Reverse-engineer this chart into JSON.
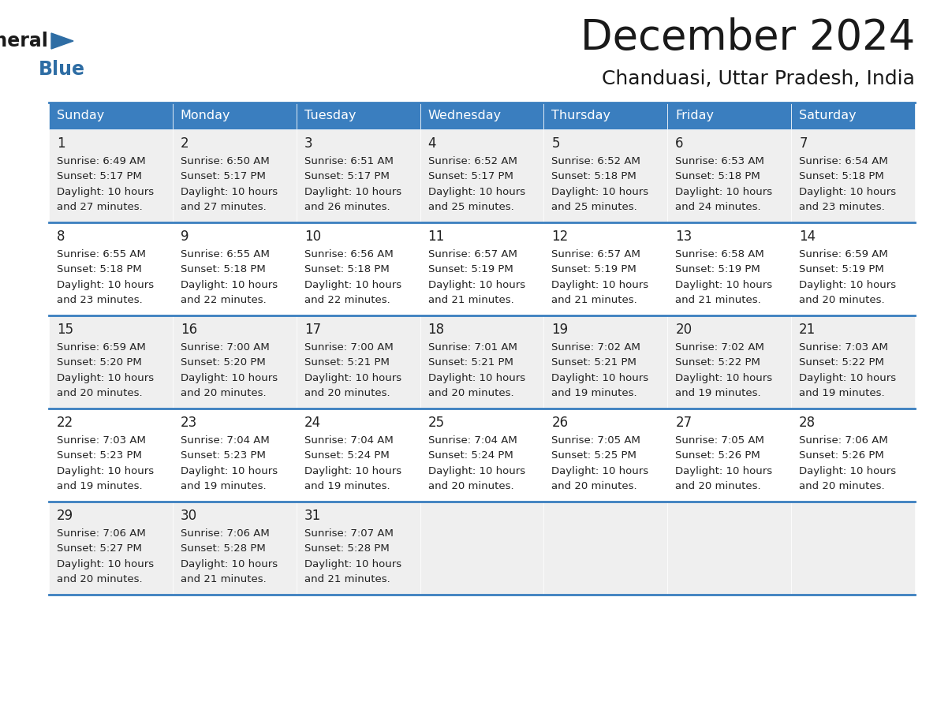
{
  "title": "December 2024",
  "subtitle": "Chanduasi, Uttar Pradesh, India",
  "header_color": "#3a7ebf",
  "header_text_color": "#ffffff",
  "row_bg_even": "#efefef",
  "row_bg_odd": "#ffffff",
  "border_color": "#3a7ebf",
  "text_color": "#222222",
  "days_of_week": [
    "Sunday",
    "Monday",
    "Tuesday",
    "Wednesday",
    "Thursday",
    "Friday",
    "Saturday"
  ],
  "weeks": [
    [
      {
        "day": 1,
        "sunrise": "6:49 AM",
        "sunset": "5:17 PM",
        "daylight": "10 hours",
        "daylight2": "and 27 minutes."
      },
      {
        "day": 2,
        "sunrise": "6:50 AM",
        "sunset": "5:17 PM",
        "daylight": "10 hours",
        "daylight2": "and 27 minutes."
      },
      {
        "day": 3,
        "sunrise": "6:51 AM",
        "sunset": "5:17 PM",
        "daylight": "10 hours",
        "daylight2": "and 26 minutes."
      },
      {
        "day": 4,
        "sunrise": "6:52 AM",
        "sunset": "5:17 PM",
        "daylight": "10 hours",
        "daylight2": "and 25 minutes."
      },
      {
        "day": 5,
        "sunrise": "6:52 AM",
        "sunset": "5:18 PM",
        "daylight": "10 hours",
        "daylight2": "and 25 minutes."
      },
      {
        "day": 6,
        "sunrise": "6:53 AM",
        "sunset": "5:18 PM",
        "daylight": "10 hours",
        "daylight2": "and 24 minutes."
      },
      {
        "day": 7,
        "sunrise": "6:54 AM",
        "sunset": "5:18 PM",
        "daylight": "10 hours",
        "daylight2": "and 23 minutes."
      }
    ],
    [
      {
        "day": 8,
        "sunrise": "6:55 AM",
        "sunset": "5:18 PM",
        "daylight": "10 hours",
        "daylight2": "and 23 minutes."
      },
      {
        "day": 9,
        "sunrise": "6:55 AM",
        "sunset": "5:18 PM",
        "daylight": "10 hours",
        "daylight2": "and 22 minutes."
      },
      {
        "day": 10,
        "sunrise": "6:56 AM",
        "sunset": "5:18 PM",
        "daylight": "10 hours",
        "daylight2": "and 22 minutes."
      },
      {
        "day": 11,
        "sunrise": "6:57 AM",
        "sunset": "5:19 PM",
        "daylight": "10 hours",
        "daylight2": "and 21 minutes."
      },
      {
        "day": 12,
        "sunrise": "6:57 AM",
        "sunset": "5:19 PM",
        "daylight": "10 hours",
        "daylight2": "and 21 minutes."
      },
      {
        "day": 13,
        "sunrise": "6:58 AM",
        "sunset": "5:19 PM",
        "daylight": "10 hours",
        "daylight2": "and 21 minutes."
      },
      {
        "day": 14,
        "sunrise": "6:59 AM",
        "sunset": "5:19 PM",
        "daylight": "10 hours",
        "daylight2": "and 20 minutes."
      }
    ],
    [
      {
        "day": 15,
        "sunrise": "6:59 AM",
        "sunset": "5:20 PM",
        "daylight": "10 hours",
        "daylight2": "and 20 minutes."
      },
      {
        "day": 16,
        "sunrise": "7:00 AM",
        "sunset": "5:20 PM",
        "daylight": "10 hours",
        "daylight2": "and 20 minutes."
      },
      {
        "day": 17,
        "sunrise": "7:00 AM",
        "sunset": "5:21 PM",
        "daylight": "10 hours",
        "daylight2": "and 20 minutes."
      },
      {
        "day": 18,
        "sunrise": "7:01 AM",
        "sunset": "5:21 PM",
        "daylight": "10 hours",
        "daylight2": "and 20 minutes."
      },
      {
        "day": 19,
        "sunrise": "7:02 AM",
        "sunset": "5:21 PM",
        "daylight": "10 hours",
        "daylight2": "and 19 minutes."
      },
      {
        "day": 20,
        "sunrise": "7:02 AM",
        "sunset": "5:22 PM",
        "daylight": "10 hours",
        "daylight2": "and 19 minutes."
      },
      {
        "day": 21,
        "sunrise": "7:03 AM",
        "sunset": "5:22 PM",
        "daylight": "10 hours",
        "daylight2": "and 19 minutes."
      }
    ],
    [
      {
        "day": 22,
        "sunrise": "7:03 AM",
        "sunset": "5:23 PM",
        "daylight": "10 hours",
        "daylight2": "and 19 minutes."
      },
      {
        "day": 23,
        "sunrise": "7:04 AM",
        "sunset": "5:23 PM",
        "daylight": "10 hours",
        "daylight2": "and 19 minutes."
      },
      {
        "day": 24,
        "sunrise": "7:04 AM",
        "sunset": "5:24 PM",
        "daylight": "10 hours",
        "daylight2": "and 19 minutes."
      },
      {
        "day": 25,
        "sunrise": "7:04 AM",
        "sunset": "5:24 PM",
        "daylight": "10 hours",
        "daylight2": "and 20 minutes."
      },
      {
        "day": 26,
        "sunrise": "7:05 AM",
        "sunset": "5:25 PM",
        "daylight": "10 hours",
        "daylight2": "and 20 minutes."
      },
      {
        "day": 27,
        "sunrise": "7:05 AM",
        "sunset": "5:26 PM",
        "daylight": "10 hours",
        "daylight2": "and 20 minutes."
      },
      {
        "day": 28,
        "sunrise": "7:06 AM",
        "sunset": "5:26 PM",
        "daylight": "10 hours",
        "daylight2": "and 20 minutes."
      }
    ],
    [
      {
        "day": 29,
        "sunrise": "7:06 AM",
        "sunset": "5:27 PM",
        "daylight": "10 hours",
        "daylight2": "and 20 minutes."
      },
      {
        "day": 30,
        "sunrise": "7:06 AM",
        "sunset": "5:28 PM",
        "daylight": "10 hours",
        "daylight2": "and 21 minutes."
      },
      {
        "day": 31,
        "sunrise": "7:07 AM",
        "sunset": "5:28 PM",
        "daylight": "10 hours",
        "daylight2": "and 21 minutes."
      },
      null,
      null,
      null,
      null
    ]
  ]
}
